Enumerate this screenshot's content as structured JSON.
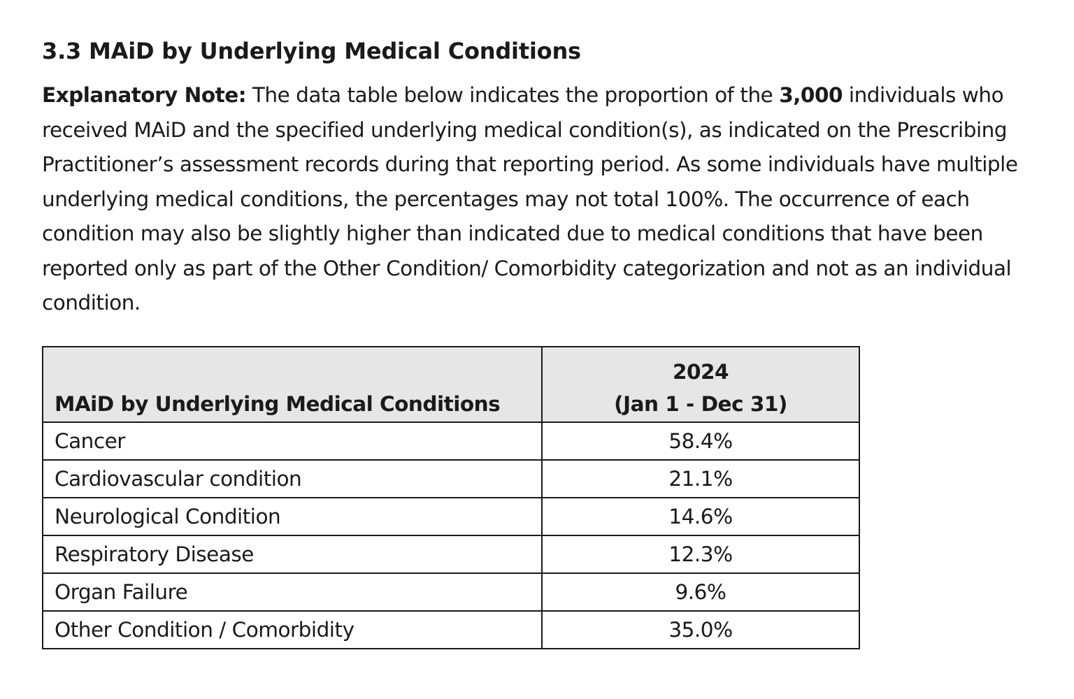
{
  "heading": "3.3 MAiD by Underlying Medical Conditions",
  "note": {
    "label": "Explanatory Note:",
    "text_before_count": " The data table below indicates the proportion of the ",
    "count": "3,000",
    "text_after_count": " individuals who received MAiD and the specified underlying medical condition(s), as indicated on the Prescribing Practitioner’s assessment records during that reporting period. As some individuals have multiple underlying medical conditions, the percentages may not total 100%.  The occurrence of each condition may also be slightly higher than indicated due to medical conditions that have been reported only as part of the Other Condition/ Comorbidity categorization and not as an individual condition."
  },
  "table": {
    "header_condition": "MAiD by Underlying Medical Conditions",
    "header_year": "2024",
    "header_period": "(Jan 1 - Dec 31)",
    "rows": [
      {
        "condition": "Cancer",
        "value": "58.4%"
      },
      {
        "condition": "Cardiovascular condition",
        "value": "21.1%"
      },
      {
        "condition": "Neurological Condition",
        "value": "14.6%"
      },
      {
        "condition": "Respiratory Disease",
        "value": "12.3%"
      },
      {
        "condition": "Organ Failure",
        "value": "9.6%"
      },
      {
        "condition": "Other Condition / Comorbidity",
        "value": "35.0%"
      }
    ]
  }
}
